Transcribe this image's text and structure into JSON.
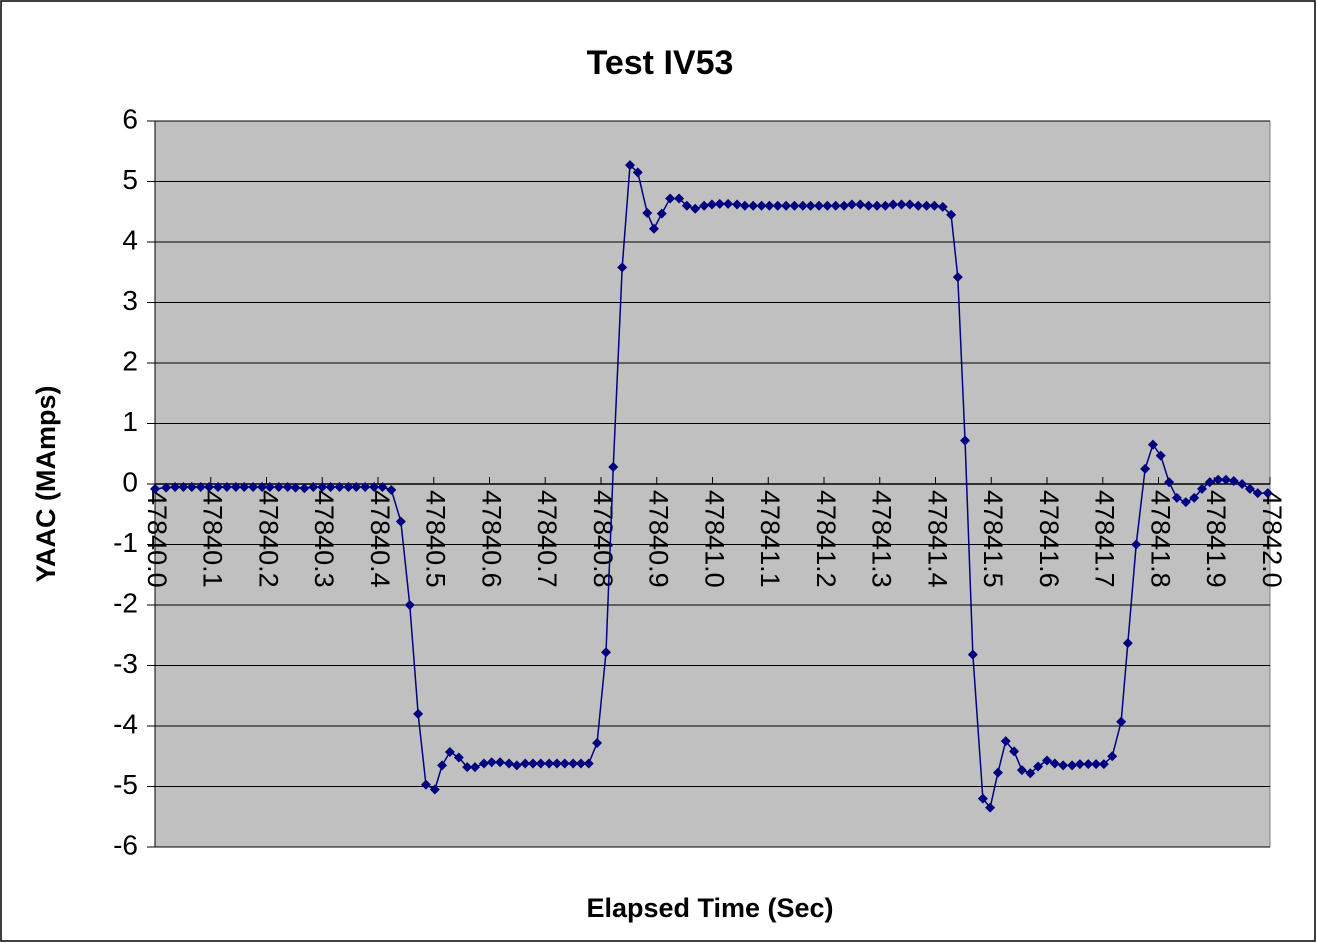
{
  "chart_data": {
    "type": "line",
    "title": "Test IV53",
    "x_label": "Elapsed Time (Sec)",
    "y_label": "YAAC (MAmps)",
    "color": "#000080",
    "grid": true,
    "xlim": [
      47840,
      47842
    ],
    "ylim": [
      -6,
      6
    ],
    "xticks": [
      {
        "value": 47840.0,
        "label": "47840.0"
      },
      {
        "value": 47840.1,
        "label": "47840.1"
      },
      {
        "value": 47840.2,
        "label": "47840.2"
      },
      {
        "value": 47840.3,
        "label": "47840.3"
      },
      {
        "value": 47840.4,
        "label": "47840.4"
      },
      {
        "value": 47840.5,
        "label": "47840.5"
      },
      {
        "value": 47840.6,
        "label": "47840.6"
      },
      {
        "value": 47840.7,
        "label": "47840.7"
      },
      {
        "value": 47840.8,
        "label": "47840.8"
      },
      {
        "value": 47840.9,
        "label": "47840.9"
      },
      {
        "value": 47841.0,
        "label": "47841.0"
      },
      {
        "value": 47841.1,
        "label": "47841.1"
      },
      {
        "value": 47841.2,
        "label": "47841.2"
      },
      {
        "value": 47841.3,
        "label": "47841.3"
      },
      {
        "value": 47841.4,
        "label": "47841.4"
      },
      {
        "value": 47841.5,
        "label": "47841.5"
      },
      {
        "value": 47841.6,
        "label": "47841.6"
      },
      {
        "value": 47841.7,
        "label": "47841.7"
      },
      {
        "value": 47841.8,
        "label": "47841.8"
      },
      {
        "value": 47841.9,
        "label": "47841.9"
      },
      {
        "value": 47842.0,
        "label": "47842.0"
      }
    ],
    "yticks": [
      -6,
      -5,
      -4,
      -3,
      -2,
      -1,
      0,
      1,
      2,
      3,
      4,
      5,
      6
    ],
    "x": [
      47840.0,
      47840.02,
      47840.036,
      47840.051,
      47840.066,
      47840.082,
      47840.097,
      47840.113,
      47840.129,
      47840.145,
      47840.16,
      47840.176,
      47840.192,
      47840.206,
      47840.222,
      47840.238,
      47840.252,
      47840.268,
      47840.284,
      47840.3,
      47840.315,
      47840.331,
      47840.347,
      47840.361,
      47840.377,
      47840.393,
      47840.408,
      47840.424,
      47840.441,
      47840.457,
      47840.472,
      47840.486,
      47840.502,
      47840.515,
      47840.529,
      47840.545,
      47840.56,
      47840.574,
      47840.59,
      47840.604,
      47840.619,
      47840.635,
      47840.649,
      47840.664,
      47840.678,
      47840.692,
      47840.707,
      47840.721,
      47840.735,
      47840.75,
      47840.764,
      47840.778,
      47840.793,
      47840.809,
      47840.822,
      47840.838,
      47840.852,
      47840.866,
      47840.883,
      47840.895,
      47840.909,
      47840.924,
      47840.94,
      47840.954,
      47840.969,
      47840.985,
      47840.999,
      47841.013,
      47841.028,
      47841.044,
      47841.058,
      47841.073,
      47841.088,
      47841.102,
      47841.117,
      47841.132,
      47841.147,
      47841.162,
      47841.176,
      47841.191,
      47841.206,
      47841.221,
      47841.236,
      47841.25,
      47841.265,
      47841.28,
      47841.295,
      47841.31,
      47841.324,
      47841.339,
      47841.354,
      47841.369,
      47841.384,
      47841.398,
      47841.413,
      47841.428,
      47841.44,
      47841.453,
      47841.467,
      47841.485,
      47841.498,
      47841.512,
      47841.526,
      47841.541,
      47841.555,
      47841.57,
      47841.584,
      47841.6,
      47841.614,
      47841.629,
      47841.645,
      47841.659,
      47841.674,
      47841.688,
      47841.702,
      47841.717,
      47841.733,
      47841.745,
      47841.76,
      47841.776,
      47841.79,
      47841.804,
      47841.819,
      47841.833,
      47841.849,
      47841.864,
      47841.878,
      47841.892,
      47841.907,
      47841.921,
      47841.935,
      47841.95,
      47841.964,
      47841.978,
      47841.996
    ],
    "values": [
      -0.08,
      -0.06,
      -0.05,
      -0.05,
      -0.05,
      -0.05,
      -0.05,
      -0.05,
      -0.05,
      -0.05,
      -0.05,
      -0.05,
      -0.05,
      -0.05,
      -0.05,
      -0.05,
      -0.06,
      -0.07,
      -0.05,
      -0.05,
      -0.05,
      -0.05,
      -0.05,
      -0.05,
      -0.05,
      -0.05,
      -0.05,
      -0.1,
      -0.62,
      -2.0,
      -3.8,
      -4.97,
      -5.05,
      -4.65,
      -4.43,
      -4.52,
      -4.68,
      -4.68,
      -4.62,
      -4.6,
      -4.6,
      -4.62,
      -4.65,
      -4.62,
      -4.62,
      -4.62,
      -4.62,
      -4.62,
      -4.62,
      -4.62,
      -4.62,
      -4.62,
      -4.28,
      -2.78,
      0.28,
      3.58,
      5.27,
      5.15,
      4.48,
      4.22,
      4.47,
      4.72,
      4.72,
      4.6,
      4.55,
      4.6,
      4.62,
      4.63,
      4.63,
      4.62,
      4.6,
      4.6,
      4.6,
      4.6,
      4.6,
      4.6,
      4.6,
      4.6,
      4.6,
      4.6,
      4.6,
      4.6,
      4.6,
      4.62,
      4.62,
      4.6,
      4.6,
      4.6,
      4.62,
      4.62,
      4.62,
      4.6,
      4.6,
      4.6,
      4.58,
      4.45,
      3.42,
      0.72,
      -2.82,
      -5.2,
      -5.35,
      -4.77,
      -4.25,
      -4.42,
      -4.73,
      -4.78,
      -4.67,
      -4.57,
      -4.62,
      -4.65,
      -4.65,
      -4.63,
      -4.63,
      -4.63,
      -4.63,
      -4.5,
      -3.93,
      -2.63,
      -1.0,
      0.25,
      0.65,
      0.47,
      0.03,
      -0.23,
      -0.3,
      -0.23,
      -0.08,
      0.03,
      0.07,
      0.07,
      0.05,
      0.0,
      -0.08,
      -0.15,
      -0.15
    ]
  }
}
